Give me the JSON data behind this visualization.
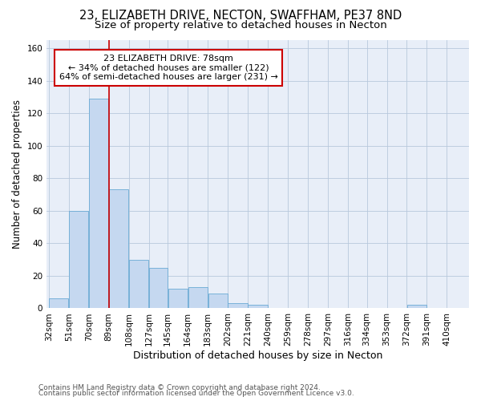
{
  "title_line1": "23, ELIZABETH DRIVE, NECTON, SWAFFHAM, PE37 8ND",
  "title_line2": "Size of property relative to detached houses in Necton",
  "xlabel": "Distribution of detached houses by size in Necton",
  "ylabel": "Number of detached properties",
  "bar_color": "#c5d8f0",
  "bar_edge_color": "#6aaad4",
  "grid_color": "#b8c8dc",
  "background_color": "#e8eef8",
  "annotation_box_color": "#cc0000",
  "annotation_line1": "23 ELIZABETH DRIVE: 78sqm",
  "annotation_line2": "← 34% of detached houses are smaller (122)",
  "annotation_line3": "64% of semi-detached houses are larger (231) →",
  "property_line_bin_idx": 3,
  "bin_edges": [
    32,
    51,
    70,
    89,
    108,
    127,
    145,
    164,
    183,
    202,
    221,
    240,
    259,
    278,
    297,
    316,
    334,
    353,
    372,
    391,
    410
  ],
  "bin_labels": [
    "32sqm",
    "51sqm",
    "70sqm",
    "89sqm",
    "108sqm",
    "127sqm",
    "145sqm",
    "164sqm",
    "183sqm",
    "202sqm",
    "221sqm",
    "240sqm",
    "259sqm",
    "278sqm",
    "297sqm",
    "316sqm",
    "334sqm",
    "353sqm",
    "372sqm",
    "391sqm",
    "410sqm"
  ],
  "bar_heights": [
    6,
    60,
    129,
    73,
    30,
    25,
    12,
    13,
    9,
    3,
    2,
    0,
    0,
    0,
    0,
    0,
    0,
    0,
    2,
    0,
    0
  ],
  "ylim": [
    0,
    165
  ],
  "yticks": [
    0,
    20,
    40,
    60,
    80,
    100,
    120,
    140,
    160
  ],
  "footer_line1": "Contains HM Land Registry data © Crown copyright and database right 2024.",
  "footer_line2": "Contains public sector information licensed under the Open Government Licence v3.0.",
  "title_fontsize": 10.5,
  "subtitle_fontsize": 9.5,
  "tick_fontsize": 7.5,
  "ylabel_fontsize": 8.5,
  "xlabel_fontsize": 9,
  "footer_fontsize": 6.5,
  "annotation_fontsize": 8
}
